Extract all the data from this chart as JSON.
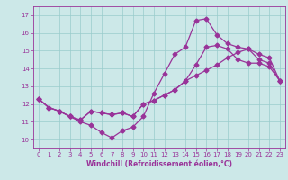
{
  "xlabel": "Windchill (Refroidissement éolien,°C)",
  "bg_color": "#cce8e8",
  "line_color": "#993399",
  "grid_color": "#99cccc",
  "ylim": [
    9.5,
    17.5
  ],
  "xlim": [
    -0.5,
    23.5
  ],
  "yticks": [
    10,
    11,
    12,
    13,
    14,
    15,
    16,
    17
  ],
  "xticks": [
    0,
    1,
    2,
    3,
    4,
    5,
    6,
    7,
    8,
    9,
    10,
    11,
    12,
    13,
    14,
    15,
    16,
    17,
    18,
    19,
    20,
    21,
    22,
    23
  ],
  "series1_x": [
    0,
    1,
    2,
    3,
    4,
    5,
    6,
    7,
    8,
    9,
    10,
    11,
    12,
    13,
    14,
    15,
    16,
    17,
    18,
    19,
    20,
    21,
    22,
    23
  ],
  "series1_y": [
    12.3,
    11.8,
    11.6,
    11.3,
    11.0,
    10.8,
    10.4,
    10.1,
    10.5,
    10.7,
    11.3,
    12.6,
    13.7,
    14.8,
    15.2,
    16.7,
    16.8,
    15.9,
    15.4,
    15.2,
    15.1,
    14.5,
    14.3,
    13.3
  ],
  "series2_x": [
    0,
    1,
    2,
    3,
    4,
    5,
    6,
    7,
    8,
    9,
    10,
    11,
    12,
    13,
    14,
    15,
    16,
    17,
    18,
    19,
    20,
    21,
    22,
    23
  ],
  "series2_y": [
    12.3,
    11.8,
    11.6,
    11.3,
    11.1,
    11.6,
    11.5,
    11.4,
    11.5,
    11.3,
    12.0,
    12.2,
    12.5,
    12.8,
    13.3,
    13.6,
    13.9,
    14.2,
    14.6,
    14.9,
    15.1,
    14.8,
    14.6,
    13.3
  ],
  "series3_x": [
    0,
    1,
    2,
    3,
    4,
    5,
    6,
    7,
    8,
    9,
    10,
    11,
    12,
    13,
    14,
    15,
    16,
    17,
    18,
    19,
    20,
    21,
    22,
    23
  ],
  "series3_y": [
    12.3,
    11.8,
    11.6,
    11.3,
    11.1,
    11.6,
    11.5,
    11.4,
    11.5,
    11.3,
    12.0,
    12.2,
    12.5,
    12.8,
    13.3,
    14.2,
    15.2,
    15.3,
    15.1,
    14.5,
    14.3,
    14.3,
    14.1,
    13.3
  ],
  "marker_size": 2.5,
  "line_width": 0.9,
  "tick_fontsize": 5.0,
  "xlabel_fontsize": 5.5
}
